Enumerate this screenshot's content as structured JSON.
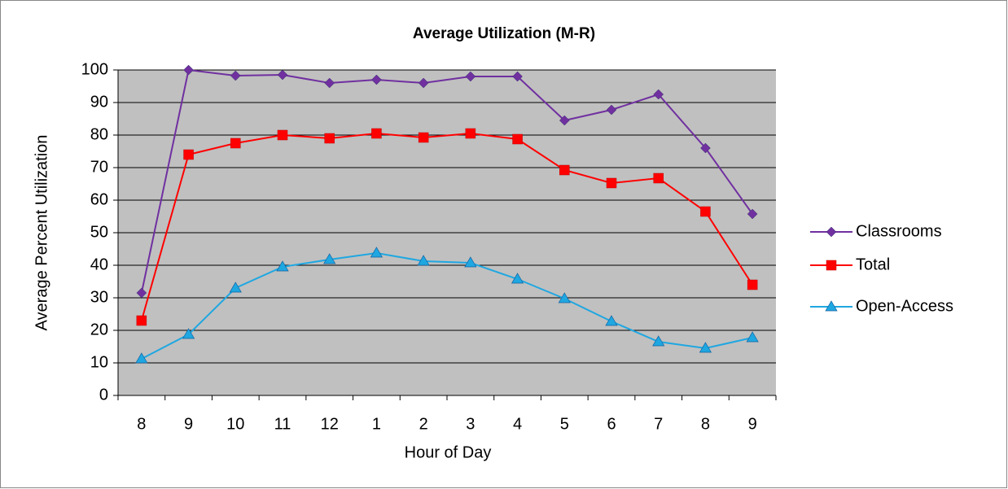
{
  "chart_data": {
    "type": "line",
    "title": "Average Utilization (M-R)",
    "xlabel": "Hour of Day",
    "ylabel": "Average Percent Utilization",
    "categories": [
      "8",
      "9",
      "10",
      "11",
      "12",
      "1",
      "2",
      "3",
      "4",
      "5",
      "6",
      "7",
      "8",
      "9"
    ],
    "series": [
      {
        "name": "Classrooms",
        "color": "#7030a0",
        "marker": "diamond",
        "values": [
          31.5,
          100,
          98.25,
          98.5,
          96,
          97,
          96,
          98,
          98,
          84.5,
          87.75,
          92.5,
          76,
          55.75
        ]
      },
      {
        "name": "Total",
        "color": "#ff0000",
        "marker": "square",
        "values": [
          23,
          74,
          77.5,
          80,
          79,
          80.5,
          79.25,
          80.5,
          78.75,
          69.25,
          65.25,
          66.75,
          56.5,
          34
        ]
      },
      {
        "name": "Open-Access",
        "color": "#1fa7e1",
        "marker": "triangle",
        "values": [
          11.25,
          18.75,
          33,
          39.5,
          41.75,
          43.75,
          41.25,
          40.75,
          35.75,
          29.75,
          22.75,
          16.5,
          14.5,
          17.75
        ]
      }
    ],
    "ylim": [
      0,
      100
    ],
    "yticks": [
      0,
      10,
      20,
      30,
      40,
      50,
      60,
      70,
      80,
      90,
      100
    ],
    "grid": true,
    "legend": "right",
    "plot_background": "#c0c0c0"
  }
}
